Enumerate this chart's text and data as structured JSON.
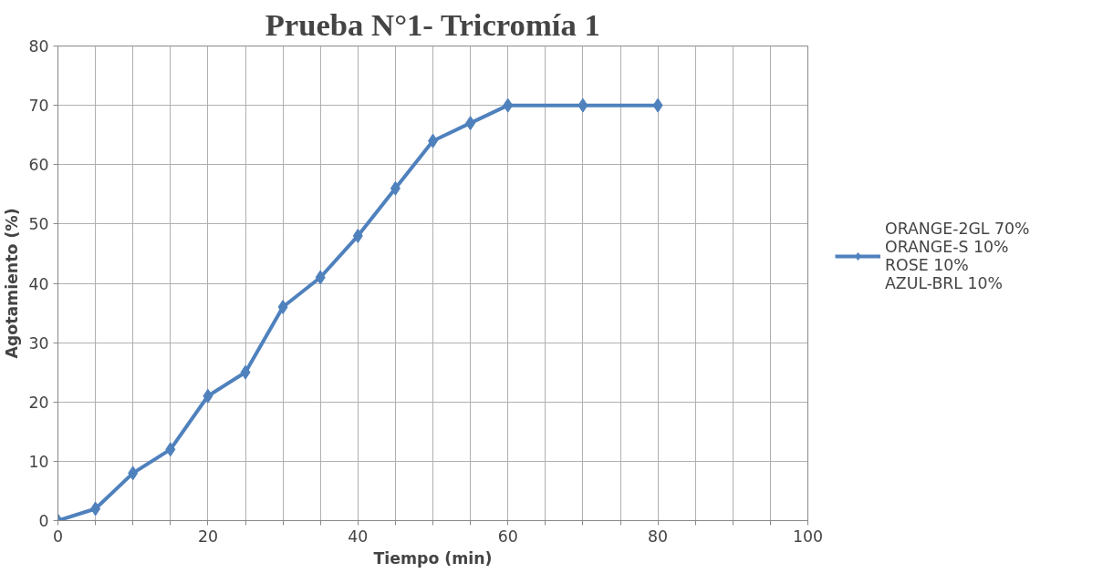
{
  "chart_data": {
    "type": "line",
    "title": "Prueba N°1- Tricromía 1",
    "xlabel": "Tiempo (min)",
    "ylabel": "Agotamiento (%)",
    "x": [
      0,
      5,
      10,
      15,
      20,
      25,
      30,
      35,
      40,
      45,
      50,
      55,
      60,
      70,
      80
    ],
    "series": [
      {
        "name": "ORANGE-2GL 70%\nORANGE-S 10%\nROSE 10%\nAZUL-BRL 10%",
        "color": "#4f81bd",
        "values": [
          0,
          2,
          8,
          12,
          21,
          25,
          36,
          41,
          48,
          56,
          64,
          67,
          70,
          70,
          70
        ]
      }
    ],
    "xlim": [
      0,
      100
    ],
    "ylim": [
      0,
      80
    ],
    "xticks": [
      0,
      {
        "value": 5,
        "label": null
      },
      {
        "value": 10,
        "label": null
      },
      {
        "value": 15,
        "label": null
      },
      20,
      {
        "value": 25,
        "label": null
      },
      {
        "value": 30,
        "label": null
      },
      {
        "value": 35,
        "label": null
      },
      40,
      {
        "value": 45,
        "label": null
      },
      {
        "value": 50,
        "label": null
      },
      {
        "value": 55,
        "label": null
      },
      60,
      {
        "value": 65,
        "label": null
      },
      {
        "value": 70,
        "label": null
      },
      {
        "value": 75,
        "label": null
      },
      80,
      {
        "value": 85,
        "label": null
      },
      {
        "value": 90,
        "label": null
      },
      {
        "value": 95,
        "label": null
      },
      100
    ],
    "yticks": [
      0,
      10,
      20,
      30,
      40,
      50,
      60,
      70,
      80
    ],
    "grid": true,
    "legend": "right",
    "marker": "diamond",
    "line_style": "solid"
  }
}
